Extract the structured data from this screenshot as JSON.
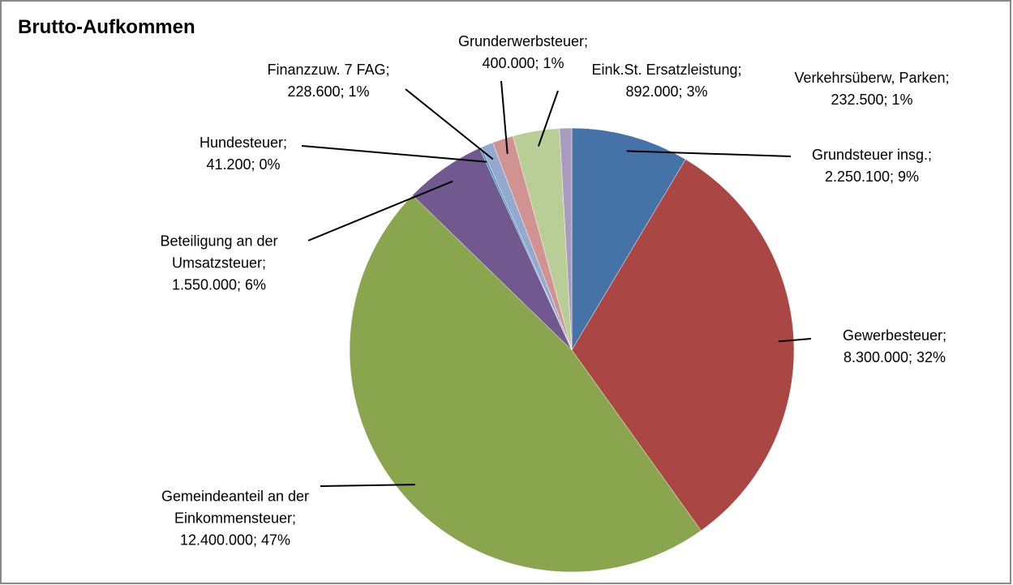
{
  "chart_data": {
    "type": "pie",
    "title": "Brutto-Aufkommen",
    "categories": [
      "Grundsteuer insg.;",
      "Gewerbesteuer;",
      "Gemeindeanteil an der Einkommensteuer;",
      "Beteiligung an der Umsatzsteuer;",
      "Hundesteuer;",
      "Finanzzuw.  7 FAG;",
      "Grunderwerbsteuer;",
      "Eink.St. Ersatzleistung;",
      "Verkehrsüberw, Parken;"
    ],
    "values": [
      2250100,
      8300000,
      12400000,
      1550000,
      41200,
      228600,
      400000,
      892000,
      232500
    ],
    "value_labels": [
      "2.250.100; 9%",
      "8.300.000; 32%",
      "12.400.000; 47%",
      "1.550.000; 6%",
      "41.200; 0%",
      "228.600; 1%",
      "400.000; 1%",
      "892.000; 3%",
      "232.500; 1%"
    ],
    "colors": [
      "#4572A7",
      "#AA4643",
      "#89A54E",
      "#71588F",
      "#4198AF",
      "#93A9CF",
      "#D19392",
      "#B9CD96",
      "#A99BBD"
    ]
  }
}
